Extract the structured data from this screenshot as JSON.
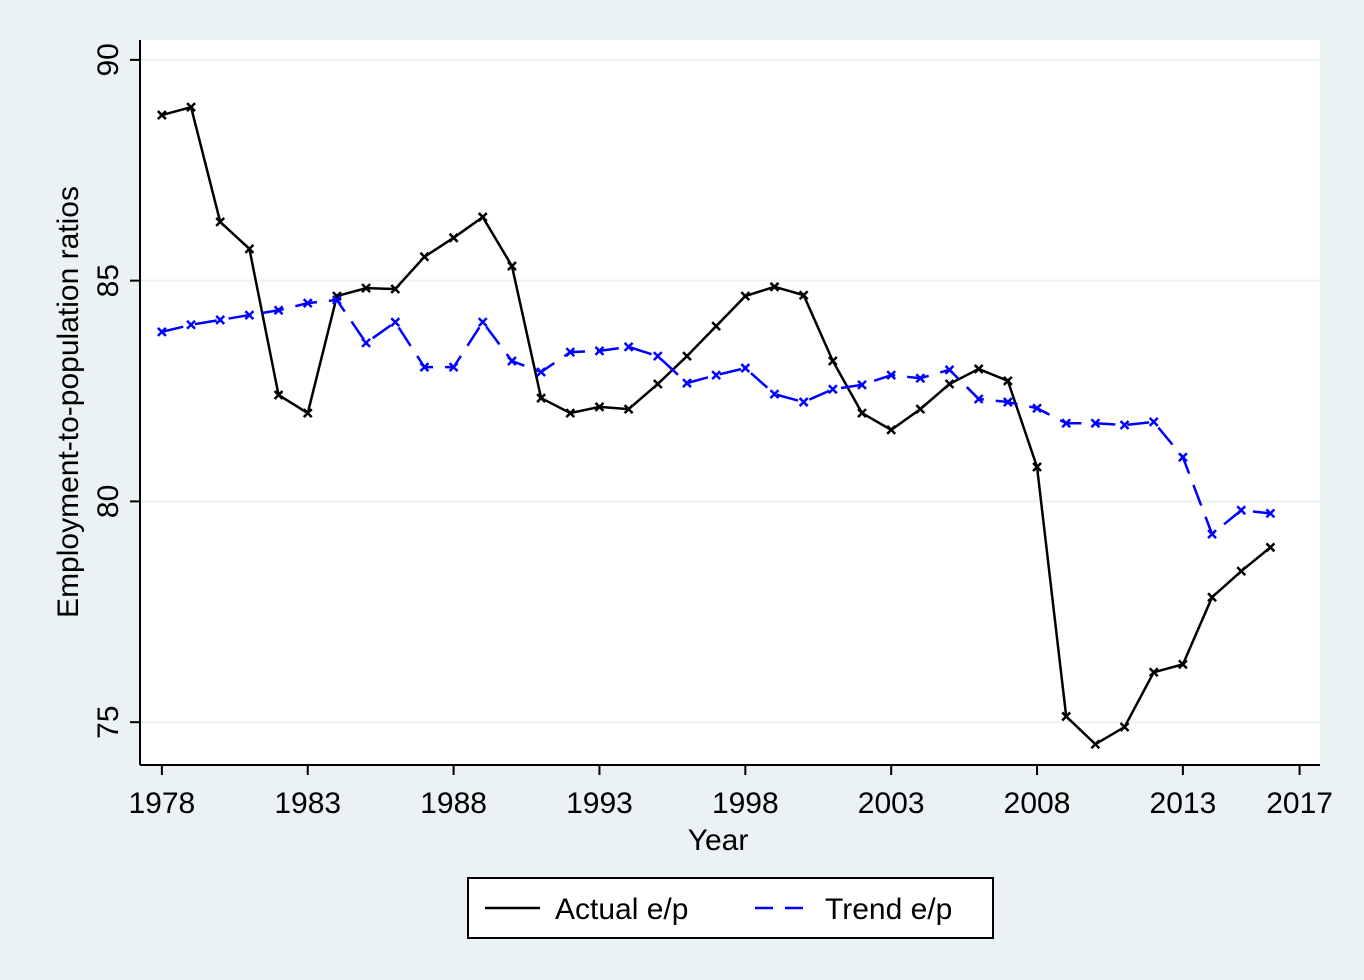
{
  "chart_data": {
    "type": "line",
    "x_label": "Year",
    "y_label": "Employment-to-population ratios",
    "x": [
      1978,
      1979,
      1980,
      1981,
      1982,
      1983,
      1984,
      1985,
      1986,
      1987,
      1988,
      1989,
      1990,
      1991,
      1992,
      1993,
      1994,
      1995,
      1996,
      1997,
      1998,
      1999,
      2000,
      2001,
      2002,
      2003,
      2004,
      2005,
      2006,
      2007,
      2008,
      2009,
      2010,
      2011,
      2012,
      2013,
      2014,
      2015,
      2016
    ],
    "series": [
      {
        "name": "Actual e/p",
        "color": "#000000",
        "dash": "solid",
        "values": [
          88.75,
          88.93,
          86.33,
          85.72,
          82.41,
          82.0,
          84.65,
          84.83,
          84.81,
          85.54,
          85.97,
          86.44,
          85.33,
          82.34,
          82.0,
          82.14,
          82.09,
          82.66,
          83.29,
          83.97,
          84.65,
          84.86,
          84.67,
          83.18,
          82.0,
          81.62,
          82.09,
          82.66,
          83.0,
          82.73,
          80.78,
          75.13,
          74.5,
          74.89,
          76.13,
          76.31,
          77.83,
          78.42,
          78.96
        ]
      },
      {
        "name": "Trend e/p",
        "color": "#0000ff",
        "dash": "dashed",
        "values": [
          83.84,
          84.0,
          84.11,
          84.22,
          84.33,
          84.49,
          84.56,
          83.59,
          84.06,
          83.04,
          83.04,
          84.06,
          83.18,
          82.93,
          83.38,
          83.41,
          83.5,
          83.29,
          82.68,
          82.86,
          83.02,
          82.43,
          82.25,
          82.54,
          82.64,
          82.86,
          82.79,
          82.98,
          82.32,
          82.25,
          82.11,
          81.77,
          81.77,
          81.73,
          81.8,
          81.0,
          79.26,
          79.8,
          79.73
        ]
      }
    ],
    "xlim": [
      1977.25,
      2017.7
    ],
    "xticks": [
      1978,
      1983,
      1988,
      1993,
      1998,
      2003,
      2008,
      2013,
      2017
    ],
    "ylim": [
      74.03,
      90.45
    ],
    "yticks": [
      75,
      80,
      85,
      90
    ],
    "grid": true,
    "legend": "bottom"
  }
}
